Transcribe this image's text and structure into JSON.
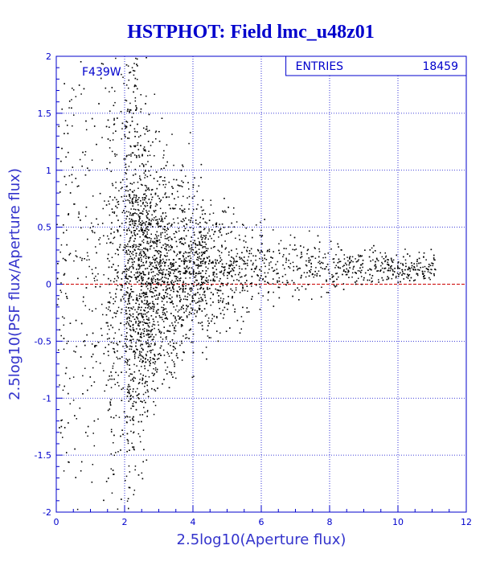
{
  "chart_data": {
    "type": "scatter",
    "title": "HSTPHOT: Field lmc_u48z01",
    "xlabel": "2.5log10(Aperture flux)",
    "ylabel": "2.5log10(PSF flux/Aperture flux)",
    "xlim": [
      0,
      12
    ],
    "ylim": [
      -2,
      2
    ],
    "x_ticks": [
      "0",
      "2",
      "4",
      "6",
      "8",
      "10",
      "12"
    ],
    "y_ticks": [
      "-2",
      "-1.5",
      "-1",
      "-0.5",
      "0",
      "0.5",
      "1",
      "1.5",
      "2"
    ],
    "grid": true,
    "filter_label": "F439W",
    "stats": {
      "entries_label": "ENTRIES",
      "entries_value": "18459"
    },
    "reference_line": {
      "y": 0,
      "color": "#cc0000",
      "style": "dashed"
    },
    "colors": {
      "points": "#000000",
      "axes": "#0000cc",
      "grid": "#0000cc",
      "title": "#0000cc"
    }
  }
}
